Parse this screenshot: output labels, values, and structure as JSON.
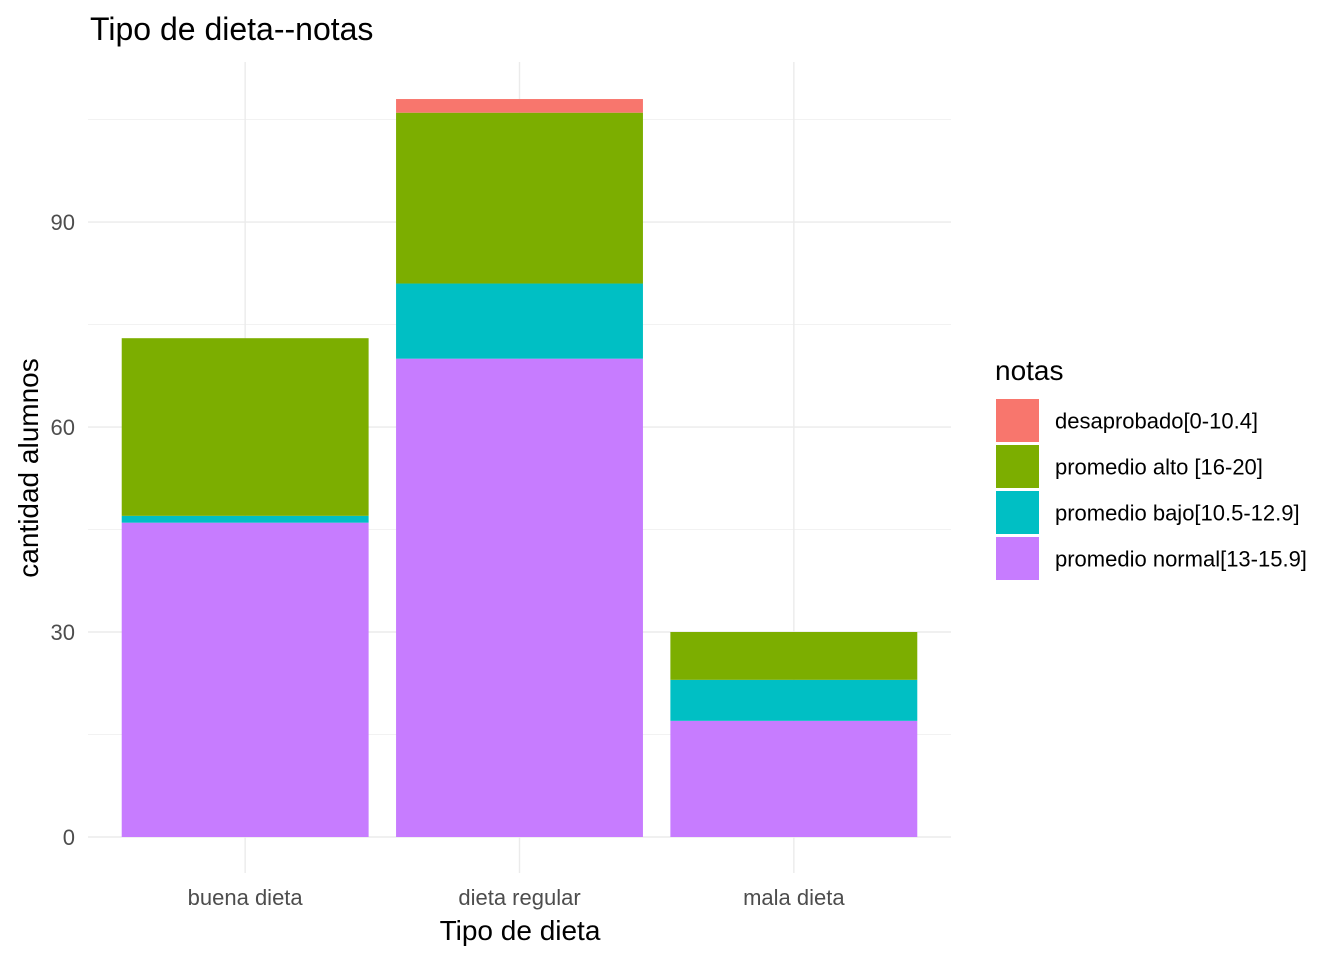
{
  "chart_data": {
    "type": "bar",
    "stacked": true,
    "title": "Tipo de dieta--notas",
    "xlabel": "Tipo de dieta",
    "ylabel": "cantidad alumnos",
    "categories": [
      "buena dieta",
      "dieta regular",
      "mala dieta"
    ],
    "ylim": [
      0,
      110
    ],
    "yticks": [
      0,
      30,
      60,
      90
    ],
    "yticks_labels": [
      "0",
      "30",
      "60",
      "90"
    ],
    "grid": true,
    "legend": {
      "title": "notas",
      "position": "right"
    },
    "series": [
      {
        "name": "desaprobado[0-10.4]",
        "color": "#F8766D",
        "values": [
          0,
          2,
          0
        ]
      },
      {
        "name": "promedio alto [16-20]",
        "color": "#7CAE00",
        "values": [
          26,
          25,
          7
        ]
      },
      {
        "name": "promedio bajo[10.5-12.9]",
        "color": "#00BFC4",
        "values": [
          1,
          11,
          6
        ]
      },
      {
        "name": "promedio normal[13-15.9]",
        "color": "#C77CFF",
        "values": [
          46,
          70,
          17
        ]
      }
    ]
  }
}
